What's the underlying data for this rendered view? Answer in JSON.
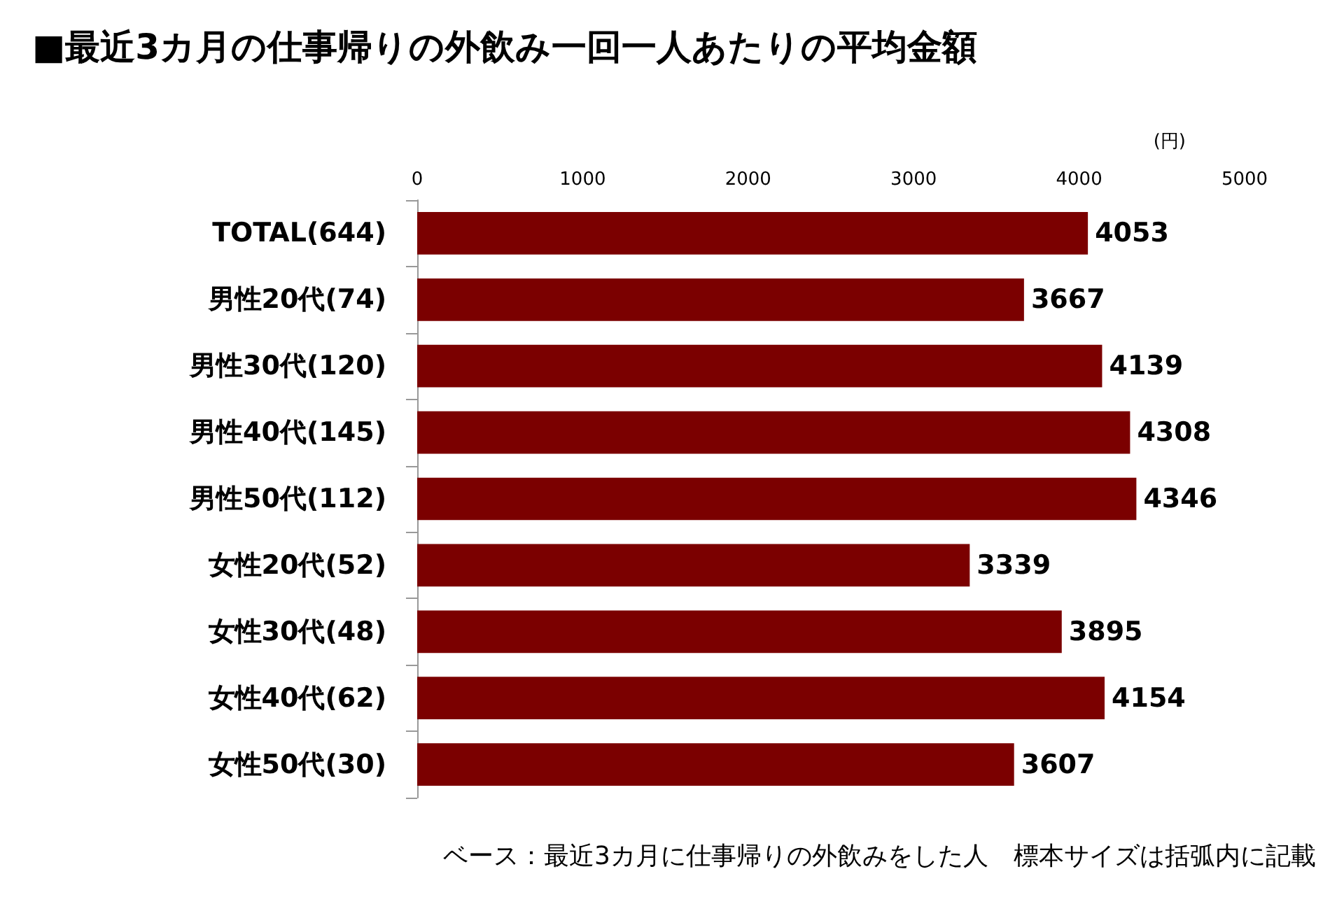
{
  "chart_data": {
    "type": "bar",
    "orientation": "horizontal",
    "title": "■最近3カ月の仕事帰りの外飲み一回一人あたりの平均金額",
    "xlabel": "(円)",
    "categories": [
      "TOTAL(644)",
      "男性20代(74)",
      "男性30代(120)",
      "男性40代(145)",
      "男性50代(112)",
      "女性20代(52)",
      "女性30代(48)",
      "女性40代(62)",
      "女性50代(30)"
    ],
    "values": [
      4053,
      3667,
      4139,
      4308,
      4346,
      3339,
      3895,
      4154,
      3607
    ],
    "color": "#7b0000",
    "xlim": [
      0,
      5000
    ],
    "xticks": [
      0,
      1000,
      2000,
      3000,
      4000,
      5000
    ],
    "grid": false,
    "data_labels": true,
    "annotations": [
      "ベース：最近3カ月に仕事帰りの外飲みをした人　標本サイズは括弧内に記載"
    ]
  }
}
